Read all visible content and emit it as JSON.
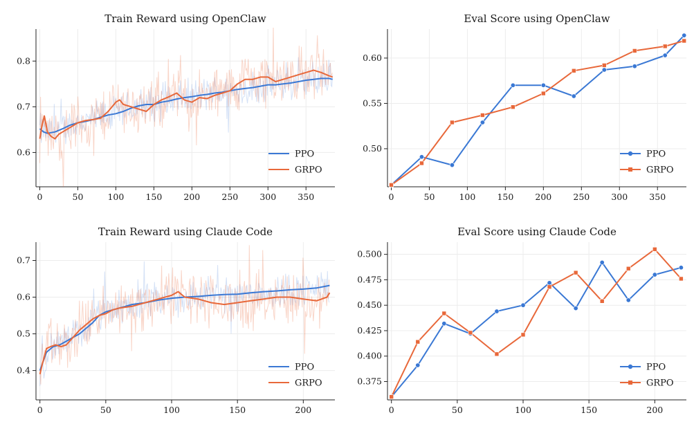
{
  "colors": {
    "PPO": "#3a78d4",
    "GRPO": "#e8683a",
    "grid": "#ececec",
    "axis": "#222222"
  },
  "chart_data": [
    {
      "type": "line",
      "title": "Train Reward using OpenClaw",
      "xlabel": "",
      "ylabel": "",
      "xlim": [
        -5,
        388
      ],
      "ylim": [
        0.525,
        0.87
      ],
      "xticks": [
        0,
        50,
        100,
        150,
        200,
        250,
        300,
        350
      ],
      "yticks": [
        0.6,
        0.7,
        0.8
      ],
      "ytick_labels": [
        "0.6",
        "0.7",
        "0.8"
      ],
      "grid": true,
      "legend": "lower-right",
      "noisy_raw": true,
      "series": [
        {
          "name": "PPO",
          "marker": "none",
          "x": [
            0,
            5,
            10,
            20,
            30,
            40,
            50,
            60,
            70,
            80,
            90,
            100,
            110,
            120,
            130,
            140,
            150,
            160,
            170,
            180,
            190,
            200,
            210,
            220,
            230,
            240,
            250,
            260,
            270,
            280,
            290,
            300,
            310,
            320,
            330,
            340,
            350,
            360,
            370,
            380,
            385
          ],
          "y": [
            0.652,
            0.645,
            0.642,
            0.645,
            0.652,
            0.66,
            0.665,
            0.668,
            0.672,
            0.677,
            0.682,
            0.685,
            0.69,
            0.697,
            0.702,
            0.705,
            0.705,
            0.71,
            0.713,
            0.717,
            0.72,
            0.722,
            0.725,
            0.727,
            0.73,
            0.732,
            0.735,
            0.738,
            0.74,
            0.742,
            0.745,
            0.748,
            0.748,
            0.75,
            0.752,
            0.755,
            0.758,
            0.76,
            0.762,
            0.762,
            0.76
          ]
        },
        {
          "name": "GRPO",
          "marker": "none",
          "x": [
            0,
            3,
            6,
            10,
            15,
            20,
            25,
            30,
            40,
            50,
            60,
            70,
            80,
            90,
            100,
            105,
            110,
            120,
            130,
            140,
            150,
            160,
            170,
            180,
            190,
            200,
            210,
            220,
            230,
            240,
            250,
            260,
            270,
            280,
            290,
            300,
            310,
            320,
            330,
            340,
            350,
            360,
            370,
            380,
            385
          ],
          "y": [
            0.63,
            0.66,
            0.68,
            0.645,
            0.635,
            0.63,
            0.64,
            0.645,
            0.655,
            0.665,
            0.67,
            0.672,
            0.675,
            0.69,
            0.71,
            0.715,
            0.705,
            0.7,
            0.695,
            0.69,
            0.705,
            0.715,
            0.722,
            0.73,
            0.715,
            0.71,
            0.72,
            0.718,
            0.725,
            0.73,
            0.735,
            0.75,
            0.76,
            0.76,
            0.765,
            0.765,
            0.755,
            0.76,
            0.765,
            0.77,
            0.775,
            0.78,
            0.775,
            0.768,
            0.765
          ]
        }
      ]
    },
    {
      "type": "line",
      "title": "Eval Score using OpenClaw",
      "xlabel": "",
      "ylabel": "",
      "xlim": [
        -5,
        388
      ],
      "ylim": [
        0.458,
        0.632
      ],
      "xticks": [
        0,
        50,
        100,
        150,
        200,
        250,
        300,
        350
      ],
      "yticks": [
        0.5,
        0.55,
        0.6
      ],
      "ytick_labels": [
        "0.50",
        "0.55",
        "0.60"
      ],
      "grid": true,
      "legend": "lower-right",
      "series": [
        {
          "name": "PPO",
          "marker": "circle",
          "x": [
            0,
            40,
            80,
            120,
            160,
            200,
            240,
            280,
            320,
            360,
            385
          ],
          "y": [
            0.46,
            0.491,
            0.482,
            0.529,
            0.57,
            0.57,
            0.558,
            0.587,
            0.591,
            0.603,
            0.625
          ]
        },
        {
          "name": "GRPO",
          "marker": "square",
          "x": [
            0,
            40,
            80,
            120,
            160,
            200,
            240,
            280,
            320,
            360,
            385
          ],
          "y": [
            0.46,
            0.484,
            0.529,
            0.537,
            0.546,
            0.561,
            0.586,
            0.592,
            0.608,
            0.613,
            0.619
          ]
        }
      ]
    },
    {
      "type": "line",
      "title": "Train Reward using Claude Code",
      "xlabel": "",
      "ylabel": "",
      "xlim": [
        -3,
        224
      ],
      "ylim": [
        0.32,
        0.75
      ],
      "xticks": [
        0,
        50,
        100,
        150,
        200
      ],
      "yticks": [
        0.4,
        0.5,
        0.6,
        0.7
      ],
      "ytick_labels": [
        "0.4",
        "0.5",
        "0.6",
        "0.7"
      ],
      "grid": true,
      "legend": "lower-right",
      "noisy_raw": true,
      "series": [
        {
          "name": "PPO",
          "marker": "none",
          "x": [
            0,
            5,
            10,
            15,
            20,
            25,
            30,
            35,
            40,
            45,
            50,
            55,
            60,
            70,
            80,
            90,
            100,
            110,
            120,
            130,
            140,
            150,
            160,
            170,
            180,
            190,
            200,
            210,
            220
          ],
          "y": [
            0.4,
            0.45,
            0.465,
            0.47,
            0.48,
            0.49,
            0.5,
            0.515,
            0.53,
            0.55,
            0.56,
            0.565,
            0.57,
            0.58,
            0.585,
            0.592,
            0.597,
            0.6,
            0.602,
            0.605,
            0.607,
            0.608,
            0.612,
            0.615,
            0.617,
            0.62,
            0.622,
            0.625,
            0.632
          ]
        },
        {
          "name": "GRPO",
          "marker": "none",
          "x": [
            0,
            2,
            5,
            8,
            12,
            16,
            20,
            25,
            30,
            35,
            40,
            45,
            50,
            55,
            60,
            70,
            80,
            90,
            100,
            105,
            110,
            120,
            130,
            140,
            150,
            160,
            170,
            180,
            190,
            200,
            210,
            218,
            220
          ],
          "y": [
            0.39,
            0.42,
            0.46,
            0.465,
            0.47,
            0.465,
            0.47,
            0.49,
            0.51,
            0.525,
            0.54,
            0.55,
            0.555,
            0.565,
            0.57,
            0.575,
            0.585,
            0.595,
            0.605,
            0.615,
            0.6,
            0.595,
            0.585,
            0.58,
            0.585,
            0.59,
            0.595,
            0.6,
            0.6,
            0.595,
            0.59,
            0.6,
            0.612
          ]
        }
      ]
    },
    {
      "type": "line",
      "title": "Eval Score using Claude Code",
      "xlabel": "",
      "ylabel": "",
      "xlim": [
        -3,
        224
      ],
      "ylim": [
        0.357,
        0.512
      ],
      "xticks": [
        0,
        50,
        100,
        150,
        200
      ],
      "yticks": [
        0.375,
        0.4,
        0.425,
        0.45,
        0.475,
        0.5
      ],
      "ytick_labels": [
        "0.375",
        "0.400",
        "0.425",
        "0.450",
        "0.475",
        "0.500"
      ],
      "grid": true,
      "legend": "lower-right",
      "series": [
        {
          "name": "PPO",
          "marker": "circle",
          "x": [
            0,
            20,
            40,
            60,
            80,
            100,
            120,
            140,
            160,
            180,
            200,
            220
          ],
          "y": [
            0.36,
            0.391,
            0.432,
            0.422,
            0.444,
            0.45,
            0.472,
            0.447,
            0.492,
            0.455,
            0.48,
            0.487
          ]
        },
        {
          "name": "GRPO",
          "marker": "square",
          "x": [
            0,
            20,
            40,
            60,
            80,
            100,
            120,
            140,
            160,
            180,
            200,
            220
          ],
          "y": [
            0.36,
            0.414,
            0.442,
            0.423,
            0.402,
            0.421,
            0.468,
            0.482,
            0.454,
            0.486,
            0.505,
            0.476
          ]
        }
      ]
    }
  ]
}
